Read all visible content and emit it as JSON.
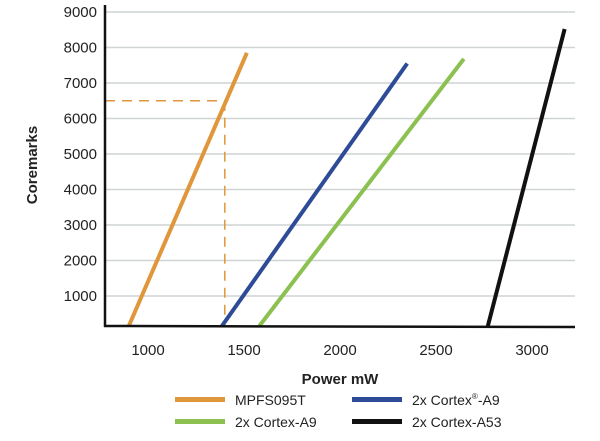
{
  "chart_data": {
    "type": "line",
    "xlabel": "Power mW",
    "ylabel": "Coremarks",
    "xlim": [
      776,
      3219
    ],
    "ylim": [
      150,
      9000
    ],
    "x_ticks": [
      1000,
      1500,
      2000,
      2500,
      3000
    ],
    "y_ticks": [
      1000,
      2000,
      3000,
      4000,
      5000,
      6000,
      7000,
      8000,
      9000
    ],
    "grid": "horizontal",
    "legend_placement": "bottom",
    "series": [
      {
        "name": "MPFS095T",
        "color": "#e0963a",
        "points": [
          [
            900,
            150
          ],
          [
            1515,
            7850
          ]
        ]
      },
      {
        "name": "2x Cortex®-A9",
        "name_parts": [
          "2x Cortex",
          "®",
          "-A9"
        ],
        "color": "#2d4b96",
        "points": [
          [
            1385,
            150
          ],
          [
            2350,
            7550
          ]
        ]
      },
      {
        "name": "2x Cortex-A9",
        "color": "#8cc152",
        "points": [
          [
            1580,
            150
          ],
          [
            2645,
            7680
          ]
        ]
      },
      {
        "name": "2x Cortex-A53",
        "color": "#111111",
        "points": [
          [
            2770,
            150
          ],
          [
            3170,
            8520
          ]
        ]
      }
    ],
    "annotations": [
      {
        "type": "dashed-guide",
        "color": "#e0963a",
        "x": 1400,
        "y": 6500
      }
    ]
  }
}
